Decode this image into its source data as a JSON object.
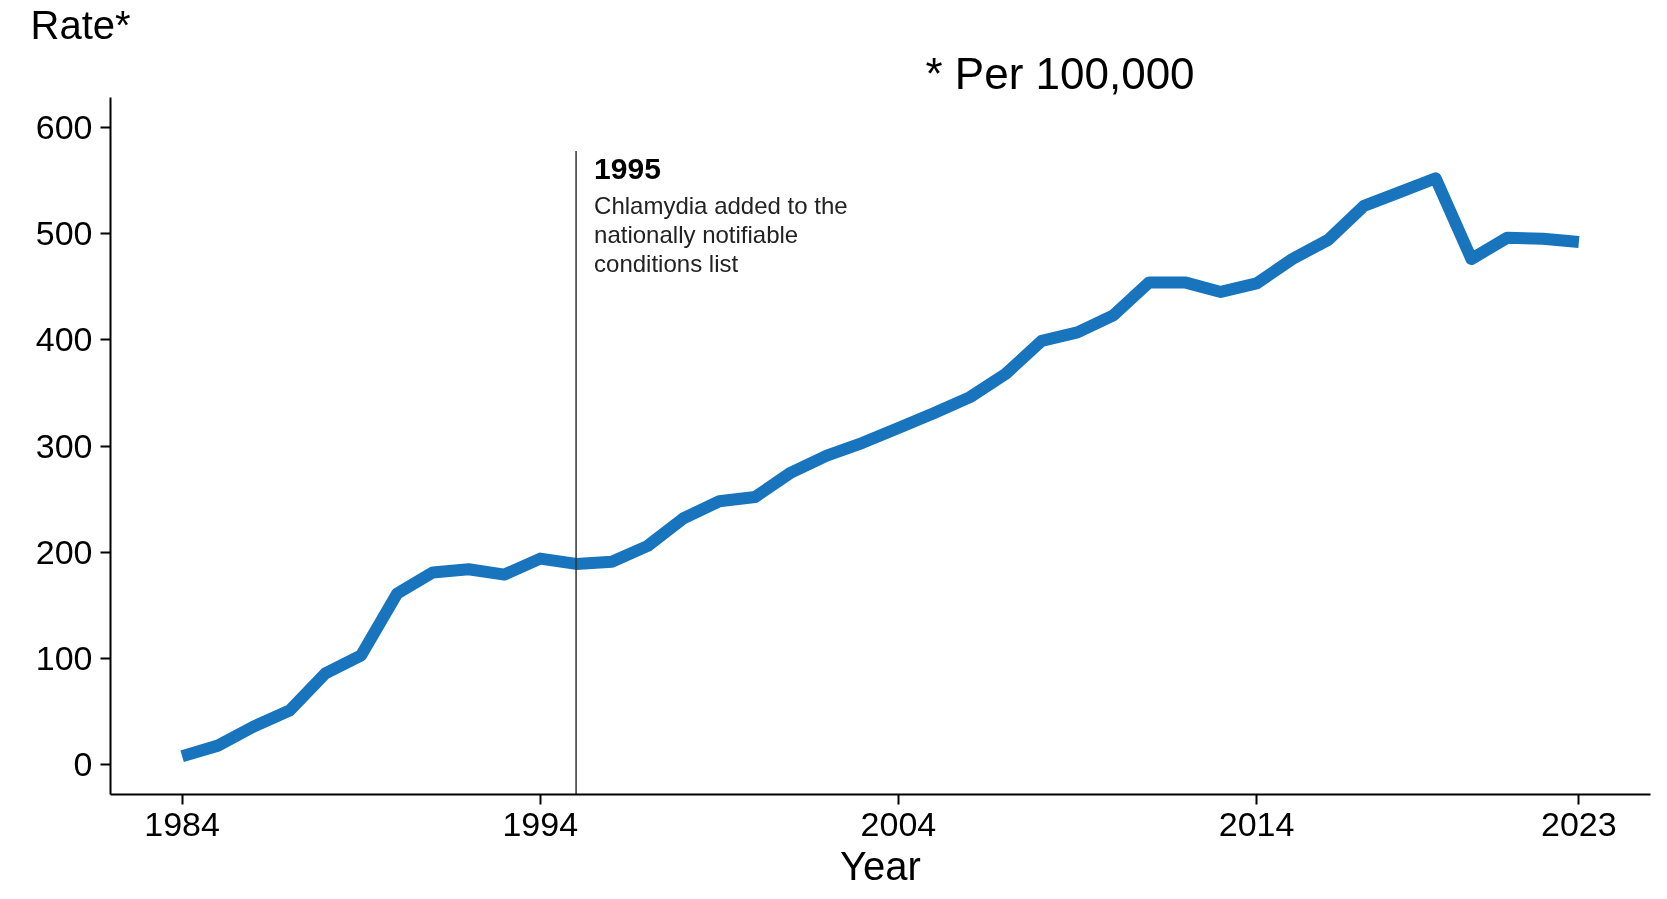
{
  "chart_data": {
    "type": "line",
    "subtitle": "* Per 100,000",
    "xlabel": "Year",
    "ylabel": "Rate*",
    "x": [
      1984,
      1985,
      1986,
      1987,
      1988,
      1989,
      1990,
      1991,
      1992,
      1993,
      1994,
      1995,
      1996,
      1997,
      1998,
      1999,
      2000,
      2001,
      2002,
      2003,
      2004,
      2005,
      2006,
      2007,
      2008,
      2009,
      2010,
      2011,
      2012,
      2013,
      2014,
      2015,
      2016,
      2017,
      2018,
      2019,
      2020,
      2021,
      2022,
      2023
    ],
    "series": [
      {
        "color": "#1874bc",
        "values": [
          8,
          18,
          36,
          51,
          86,
          103,
          161,
          181,
          184,
          179,
          194,
          189,
          191,
          206,
          232,
          248,
          252,
          275,
          291,
          303,
          317,
          331,
          346,
          368,
          399,
          407,
          423,
          454,
          454,
          445,
          453,
          476,
          494,
          526,
          539,
          552,
          476,
          496,
          495,
          492
        ]
      }
    ],
    "xlim": [
      1982,
      2025
    ],
    "ylim": [
      -28,
      628
    ],
    "xticks": [
      1984,
      1994,
      2004,
      2014,
      2023
    ],
    "yticks": [
      0,
      100,
      200,
      300,
      400,
      500,
      600
    ],
    "ref_lines": [
      {
        "axis": "x",
        "value": 1995,
        "label": "1995",
        "color": "#333333"
      }
    ],
    "annotations": [
      "Chlamydia added to the nationally notifiable conditions list"
    ],
    "grid": false,
    "marker": "none",
    "line_style": "solid"
  }
}
